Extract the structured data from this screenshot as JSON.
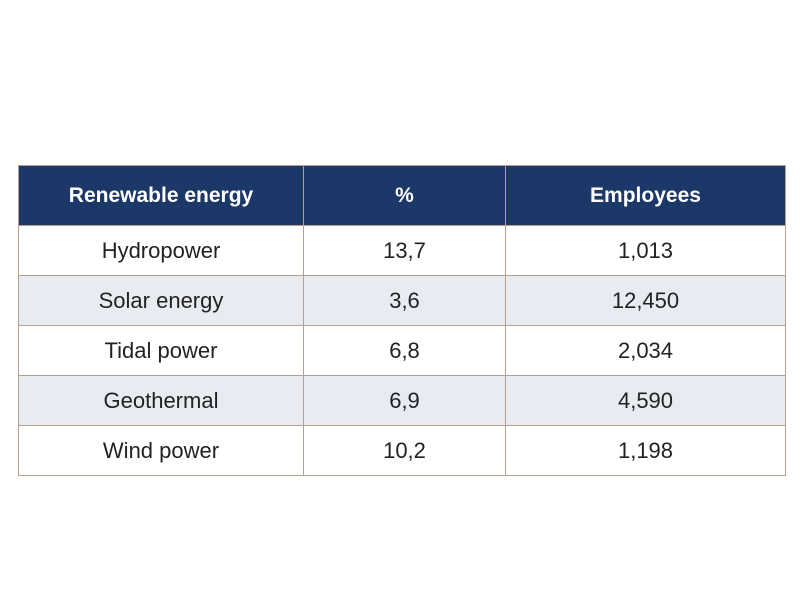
{
  "chart_data": {
    "type": "table",
    "columns": [
      "Renewable energy",
      "%",
      "Employees"
    ],
    "rows": [
      [
        "Hydropower",
        "13,7",
        "1,013"
      ],
      [
        "Solar energy",
        "3,6",
        "12,450"
      ],
      [
        "Tidal power",
        "6,8",
        "2,034"
      ],
      [
        "Geothermal",
        "6,9",
        "4,590"
      ],
      [
        "Wind power",
        "10,2",
        "1,198"
      ]
    ]
  },
  "colors": {
    "header_bg": "#1c3868",
    "header_text": "#ffffff",
    "alt_row_bg": "#e9ebf2",
    "border": "#b89e8c"
  }
}
